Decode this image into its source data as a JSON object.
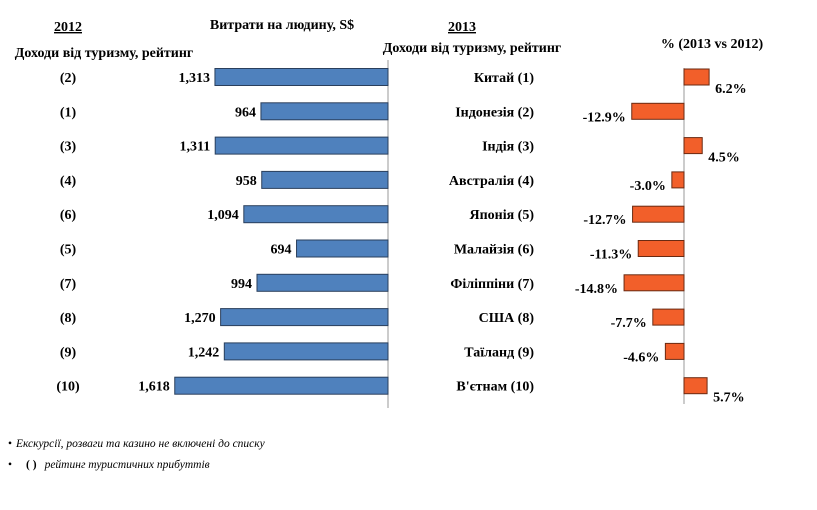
{
  "headers": {
    "year_left": "2012",
    "ranking_left": "Доходи від туризму, рейтинг",
    "spend_title": "Витрати на людину, S$",
    "year_right": "2013",
    "ranking_right": "Доходи від туризму, рейтинг",
    "pct_title": "%  (2013 vs 2012)"
  },
  "chart_data": [
    {
      "type": "bar",
      "orientation": "horizontal",
      "direction": "right-to-left",
      "title": "Витрати на людину, S$",
      "categories": [
        "Китай",
        "Індонезія",
        "Індія",
        "Австралія",
        "Японія",
        "Малайзія",
        "Філіппіни",
        "США",
        "Таїланд",
        "В'єтнам"
      ],
      "rank_2012": [
        "(2)",
        "(1)",
        "(3)",
        "(4)",
        "(6)",
        "(5)",
        "(7)",
        "(8)",
        "(9)",
        "(10)"
      ],
      "values": [
        1313,
        964,
        1311,
        958,
        1094,
        694,
        994,
        1270,
        1242,
        1618
      ],
      "labels": [
        "1,313",
        "964",
        "1,311",
        "958",
        "1,094",
        "694",
        "994",
        "1,270",
        "1,242",
        "1,618"
      ],
      "xlim": [
        0,
        1800
      ],
      "color": "#4f81bd"
    },
    {
      "type": "bar",
      "orientation": "horizontal",
      "title": "%  (2013 vs 2012)",
      "categories": [
        "Китай",
        "Індонезія",
        "Індія",
        "Австралія",
        "Японія",
        "Малайзія",
        "Філіппіни",
        "США",
        "Таїланд",
        "В'єтнам"
      ],
      "rank_2013": [
        "(1)",
        "(2)",
        "(3)",
        "(4)",
        "(5)",
        "(6)",
        "(7)",
        "(8)",
        "(9)",
        "(10)"
      ],
      "values": [
        6.2,
        -12.9,
        4.5,
        -3.0,
        -12.7,
        -11.3,
        -14.8,
        -7.7,
        -4.6,
        5.7
      ],
      "labels": [
        "6.2%",
        "-12.9%",
        "4.5%",
        "-3.0%",
        "-12.7%",
        "-11.3%",
        "-14.8%",
        "-7.7%",
        "-4.6%",
        "5.7%"
      ],
      "xlim": [
        -16,
        8
      ],
      "color": "#f25f2a"
    }
  ],
  "notes": {
    "line1": "Екскурсії, розваги та казино не включені до списку",
    "line2_paren": "( )",
    "line2": "рейтинг туристичних прибуттів"
  }
}
